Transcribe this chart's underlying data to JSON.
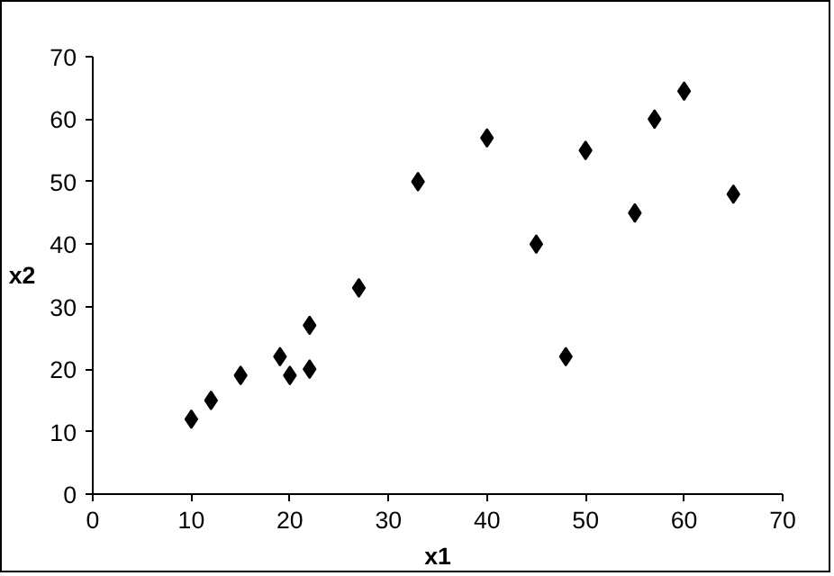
{
  "chart_data": {
    "type": "scatter",
    "xlabel": "x1",
    "ylabel": "x2",
    "marker": "diamond",
    "grid": false,
    "series": [
      {
        "color": "#000000",
        "x": [
          10,
          12,
          15,
          19,
          20,
          22,
          22,
          27,
          33,
          40,
          45,
          48,
          50,
          55,
          57,
          60,
          65
        ],
        "values": [
          12,
          15,
          19,
          22,
          19,
          20,
          27,
          33,
          50,
          57,
          40,
          22,
          55,
          45,
          60,
          64.5,
          48
        ]
      }
    ],
    "xlim": [
      0,
      70
    ],
    "xticks": [
      0,
      10,
      20,
      30,
      40,
      50,
      60,
      70
    ],
    "ylim": [
      0,
      70
    ],
    "yticks": [
      0,
      10,
      20,
      30,
      40,
      50,
      60,
      70
    ]
  }
}
